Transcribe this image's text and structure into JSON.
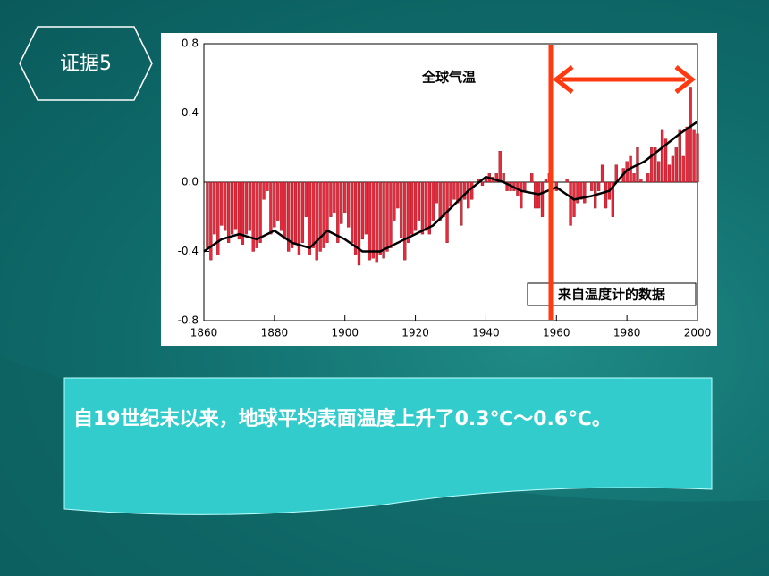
{
  "slide": {
    "badge": "证据5",
    "caption": "自19世纪末以来，地球平均表面温度上升了0.3℃～0.6℃。"
  },
  "chart_data": {
    "type": "bar",
    "title": "全球气温",
    "annotation": "来自温度计的数据",
    "x": [
      1861,
      1862,
      1863,
      1864,
      1865,
      1866,
      1867,
      1868,
      1869,
      1870,
      1871,
      1872,
      1873,
      1874,
      1875,
      1876,
      1877,
      1878,
      1879,
      1880,
      1881,
      1882,
      1883,
      1884,
      1885,
      1886,
      1887,
      1888,
      1889,
      1890,
      1891,
      1892,
      1893,
      1894,
      1895,
      1896,
      1897,
      1898,
      1899,
      1900,
      1901,
      1902,
      1903,
      1904,
      1905,
      1906,
      1907,
      1908,
      1909,
      1910,
      1911,
      1912,
      1913,
      1914,
      1915,
      1916,
      1917,
      1918,
      1919,
      1920,
      1921,
      1922,
      1923,
      1924,
      1925,
      1926,
      1927,
      1928,
      1929,
      1930,
      1931,
      1932,
      1933,
      1934,
      1935,
      1936,
      1937,
      1938,
      1939,
      1940,
      1941,
      1942,
      1943,
      1944,
      1945,
      1946,
      1947,
      1948,
      1949,
      1950,
      1951,
      1952,
      1953,
      1954,
      1955,
      1956,
      1957,
      1958,
      1959,
      1960,
      1961,
      1962,
      1963,
      1964,
      1965,
      1966,
      1967,
      1968,
      1969,
      1970,
      1971,
      1972,
      1973,
      1974,
      1975,
      1976,
      1977,
      1978,
      1979,
      1980,
      1981,
      1982,
      1983,
      1984,
      1985,
      1986,
      1987,
      1988,
      1989,
      1990,
      1991,
      1992,
      1993,
      1994,
      1995,
      1996,
      1997,
      1998,
      1999,
      2000
    ],
    "series": [
      {
        "color": "#e8283c",
        "values": [
          -0.38,
          -0.45,
          -0.3,
          -0.42,
          -0.25,
          -0.28,
          -0.35,
          -0.3,
          -0.27,
          -0.33,
          -0.36,
          -0.3,
          -0.28,
          -0.4,
          -0.38,
          -0.35,
          -0.1,
          -0.05,
          -0.3,
          -0.26,
          -0.22,
          -0.28,
          -0.33,
          -0.4,
          -0.38,
          -0.36,
          -0.42,
          -0.35,
          -0.2,
          -0.42,
          -0.38,
          -0.45,
          -0.4,
          -0.38,
          -0.35,
          -0.2,
          -0.18,
          -0.35,
          -0.24,
          -0.18,
          -0.26,
          -0.35,
          -0.42,
          -0.48,
          -0.33,
          -0.3,
          -0.45,
          -0.44,
          -0.46,
          -0.42,
          -0.44,
          -0.4,
          -0.38,
          -0.22,
          -0.15,
          -0.32,
          -0.45,
          -0.35,
          -0.3,
          -0.28,
          -0.22,
          -0.3,
          -0.28,
          -0.3,
          -0.22,
          -0.12,
          -0.22,
          -0.2,
          -0.35,
          -0.14,
          -0.1,
          -0.12,
          -0.25,
          -0.1,
          -0.15,
          -0.1,
          0.0,
          0.02,
          -0.02,
          0.02,
          0.05,
          0.03,
          0.05,
          0.18,
          0.05,
          -0.05,
          -0.05,
          -0.05,
          -0.08,
          -0.15,
          -0.05,
          0.0,
          0.05,
          -0.15,
          -0.15,
          -0.2,
          0.02,
          0.05,
          0.0,
          -0.05,
          0.0,
          0.0,
          0.02,
          -0.25,
          -0.2,
          -0.12,
          -0.1,
          -0.12,
          0.0,
          -0.05,
          -0.15,
          -0.05,
          0.1,
          -0.15,
          -0.1,
          -0.2,
          0.1,
          0.0,
          0.08,
          0.12,
          0.15,
          0.05,
          0.2,
          0.02,
          0.0,
          0.05,
          0.2,
          0.2,
          0.12,
          0.3,
          0.25,
          0.1,
          0.15,
          0.2,
          0.3,
          0.15,
          0.32,
          0.55,
          0.3,
          0.28
        ]
      }
    ],
    "trend": {
      "color": "#000000",
      "x": [
        1860,
        1865,
        1870,
        1875,
        1880,
        1885,
        1890,
        1895,
        1900,
        1905,
        1910,
        1915,
        1920,
        1925,
        1930,
        1935,
        1940,
        1945,
        1950,
        1955,
        1960,
        1965,
        1970,
        1975,
        1980,
        1985,
        1990,
        1995,
        2000
      ],
      "values": [
        -0.4,
        -0.33,
        -0.3,
        -0.33,
        -0.28,
        -0.35,
        -0.38,
        -0.28,
        -0.33,
        -0.4,
        -0.4,
        -0.35,
        -0.3,
        -0.25,
        -0.15,
        -0.05,
        0.03,
        0.0,
        -0.05,
        -0.07,
        -0.03,
        -0.1,
        -0.08,
        -0.05,
        0.07,
        0.12,
        0.2,
        0.28,
        0.35
      ]
    },
    "xlim": [
      1860,
      2000
    ],
    "xticks": [
      1860,
      1880,
      1900,
      1920,
      1940,
      1960,
      1980,
      2000
    ],
    "ylim": [
      -0.8,
      0.8
    ],
    "yticks": [
      0.8,
      0.4,
      {
        "value": 0,
        "label": "0.0"
      },
      -0.4,
      -0.8
    ]
  }
}
